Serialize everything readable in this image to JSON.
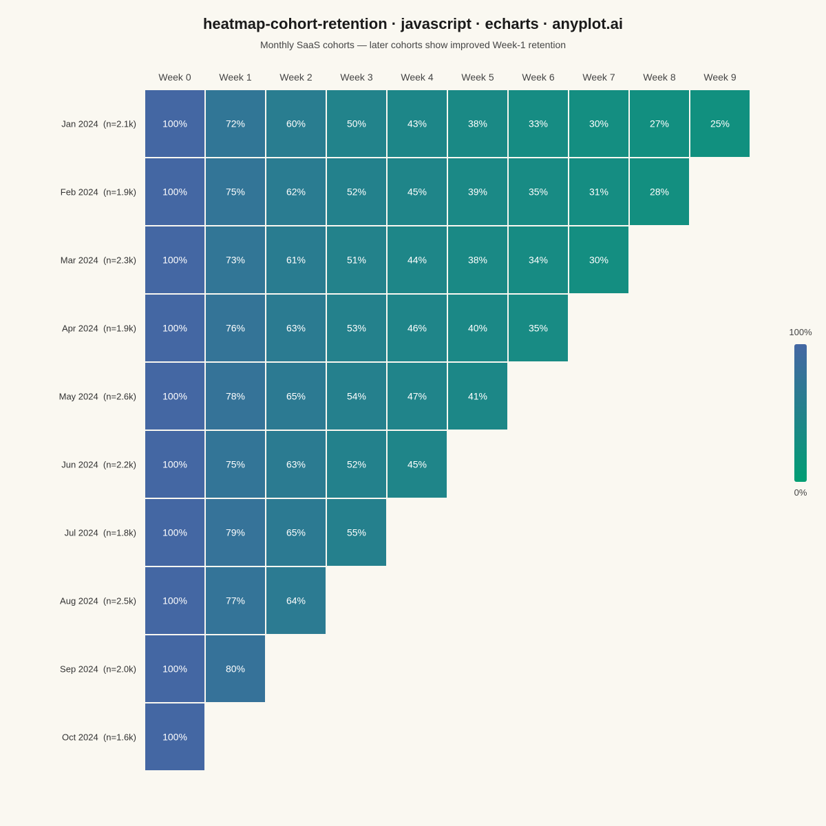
{
  "chart_data": {
    "type": "heatmap",
    "title": "heatmap-cohort-retention · javascript · echarts · anyplot.ai",
    "subtitle": "Monthly SaaS cohorts — later cohorts show improved Week-1 retention",
    "columns": [
      "Week 0",
      "Week 1",
      "Week 2",
      "Week 3",
      "Week 4",
      "Week 5",
      "Week 6",
      "Week 7",
      "Week 8",
      "Week 9"
    ],
    "rows": [
      {
        "label": "Jan 2024  (n=2.1k)",
        "values": [
          100,
          72,
          60,
          50,
          43,
          38,
          33,
          30,
          27,
          25
        ]
      },
      {
        "label": "Feb 2024  (n=1.9k)",
        "values": [
          100,
          75,
          62,
          52,
          45,
          39,
          35,
          31,
          28
        ]
      },
      {
        "label": "Mar 2024  (n=2.3k)",
        "values": [
          100,
          73,
          61,
          51,
          44,
          38,
          34,
          30
        ]
      },
      {
        "label": "Apr 2024  (n=1.9k)",
        "values": [
          100,
          76,
          63,
          53,
          46,
          40,
          35
        ]
      },
      {
        "label": "May 2024  (n=2.6k)",
        "values": [
          100,
          78,
          65,
          54,
          47,
          41
        ]
      },
      {
        "label": "Jun 2024  (n=2.2k)",
        "values": [
          100,
          75,
          63,
          52,
          45
        ]
      },
      {
        "label": "Jul 2024  (n=1.8k)",
        "values": [
          100,
          79,
          65,
          55
        ]
      },
      {
        "label": "Aug 2024  (n=2.5k)",
        "values": [
          100,
          77,
          64
        ]
      },
      {
        "label": "Sep 2024  (n=2.0k)",
        "values": [
          100,
          80
        ]
      },
      {
        "label": "Oct 2024  (n=1.6k)",
        "values": [
          100
        ]
      }
    ],
    "value_suffix": "%",
    "value_range": [
      0,
      100
    ],
    "color_scale": {
      "low": "#009E73",
      "high": "#4467A3"
    },
    "legend": {
      "position": "right",
      "max_label": "100%",
      "min_label": "0%"
    }
  }
}
